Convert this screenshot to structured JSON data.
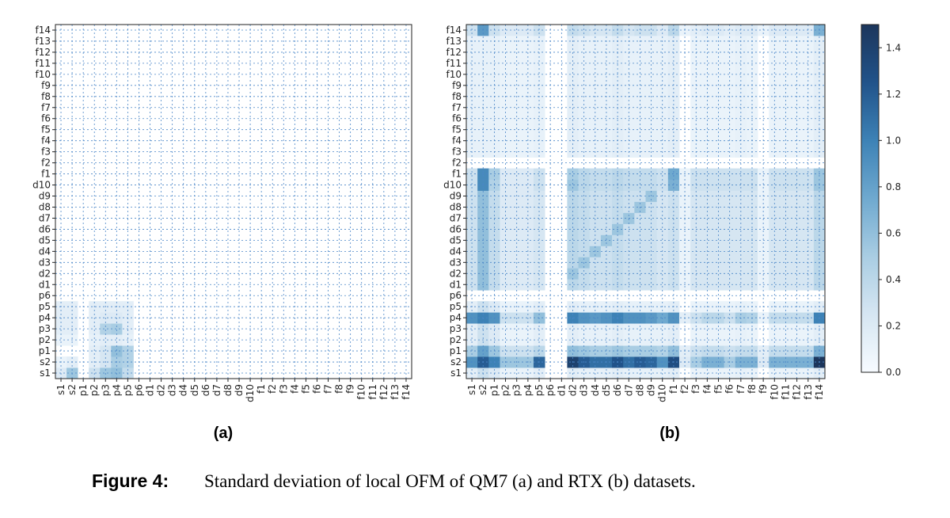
{
  "chart_data": [
    {
      "type": "heatmap",
      "panel_label": "(a)",
      "x_labels": [
        "s1",
        "s2",
        "p1",
        "p2",
        "p3",
        "p4",
        "p5",
        "p6",
        "d1",
        "d2",
        "d3",
        "d4",
        "d5",
        "d6",
        "d7",
        "d8",
        "d9",
        "d10",
        "f1",
        "f2",
        "f3",
        "f4",
        "f5",
        "f6",
        "f7",
        "f8",
        "f9",
        "f10",
        "f11",
        "f12",
        "f13",
        "f14"
      ],
      "y_labels": [
        "s1",
        "s2",
        "p1",
        "p2",
        "p3",
        "p4",
        "p5",
        "p6",
        "d1",
        "d2",
        "d3",
        "d4",
        "d5",
        "d6",
        "d7",
        "d8",
        "d9",
        "d10",
        "f1",
        "f2",
        "f3",
        "f4",
        "f5",
        "f6",
        "f7",
        "f8",
        "f9",
        "f10",
        "f11",
        "f12",
        "f13",
        "f14"
      ],
      "cells": [
        {
          "x": "s1",
          "y": "s1",
          "v": 0.2
        },
        {
          "x": "s2",
          "y": "s1",
          "v": 0.55
        },
        {
          "x": "p2",
          "y": "s1",
          "v": 0.3
        },
        {
          "x": "p3",
          "y": "s1",
          "v": 0.55
        },
        {
          "x": "p4",
          "y": "s1",
          "v": 0.6
        },
        {
          "x": "p5",
          "y": "s1",
          "v": 0.35
        },
        {
          "x": "s1",
          "y": "s2",
          "v": 0.1
        },
        {
          "x": "s2",
          "y": "s2",
          "v": 0.15
        },
        {
          "x": "p2",
          "y": "s2",
          "v": 0.15
        },
        {
          "x": "p3",
          "y": "s2",
          "v": 0.25
        },
        {
          "x": "p4",
          "y": "s2",
          "v": 0.5
        },
        {
          "x": "p5",
          "y": "s2",
          "v": 0.45
        },
        {
          "x": "p2",
          "y": "p1",
          "v": 0.15
        },
        {
          "x": "p3",
          "y": "p1",
          "v": 0.25
        },
        {
          "x": "p4",
          "y": "p1",
          "v": 0.6
        },
        {
          "x": "p5",
          "y": "p1",
          "v": 0.45
        },
        {
          "x": "s1",
          "y": "p2",
          "v": 0.1
        },
        {
          "x": "s2",
          "y": "p2",
          "v": 0.1
        },
        {
          "x": "p2",
          "y": "p2",
          "v": 0.12
        },
        {
          "x": "p3",
          "y": "p2",
          "v": 0.15
        },
        {
          "x": "p4",
          "y": "p2",
          "v": 0.15
        },
        {
          "x": "p5",
          "y": "p2",
          "v": 0.12
        },
        {
          "x": "s1",
          "y": "p3",
          "v": 0.15
        },
        {
          "x": "s2",
          "y": "p3",
          "v": 0.15
        },
        {
          "x": "p2",
          "y": "p3",
          "v": 0.15
        },
        {
          "x": "p3",
          "y": "p3",
          "v": 0.45
        },
        {
          "x": "p4",
          "y": "p3",
          "v": 0.5
        },
        {
          "x": "p5",
          "y": "p3",
          "v": 0.15
        },
        {
          "x": "s1",
          "y": "p4",
          "v": 0.15
        },
        {
          "x": "s2",
          "y": "p4",
          "v": 0.15
        },
        {
          "x": "p2",
          "y": "p4",
          "v": 0.15
        },
        {
          "x": "p3",
          "y": "p4",
          "v": 0.2
        },
        {
          "x": "p4",
          "y": "p4",
          "v": 0.2
        },
        {
          "x": "p5",
          "y": "p4",
          "v": 0.15
        },
        {
          "x": "s1",
          "y": "p5",
          "v": 0.15
        },
        {
          "x": "s2",
          "y": "p5",
          "v": 0.15
        },
        {
          "x": "p2",
          "y": "p5",
          "v": 0.15
        },
        {
          "x": "p3",
          "y": "p5",
          "v": 0.15
        },
        {
          "x": "p4",
          "y": "p5",
          "v": 0.15
        },
        {
          "x": "p5",
          "y": "p5",
          "v": 0.15
        }
      ]
    },
    {
      "type": "heatmap",
      "panel_label": "(b)",
      "x_labels": [
        "s1",
        "s2",
        "p1",
        "p2",
        "p3",
        "p4",
        "p5",
        "p6",
        "d1",
        "d2",
        "d3",
        "d4",
        "d5",
        "d6",
        "d7",
        "d8",
        "d9",
        "d10",
        "f1",
        "f2",
        "f3",
        "f4",
        "f5",
        "f6",
        "f7",
        "f8",
        "f9",
        "f10",
        "f11",
        "f12",
        "f13",
        "f14"
      ],
      "y_labels": [
        "s1",
        "s2",
        "p1",
        "p2",
        "p3",
        "p4",
        "p5",
        "p6",
        "d1",
        "d2",
        "d3",
        "d4",
        "d5",
        "d6",
        "d7",
        "d8",
        "d9",
        "d10",
        "f1",
        "f2",
        "f3",
        "f4",
        "f5",
        "f6",
        "f7",
        "f8",
        "f9",
        "f10",
        "f11",
        "f12",
        "f13",
        "f14"
      ],
      "row_profiles": {
        "s2": [
          0.9,
          1.2,
          1.0,
          0.55,
          0.55,
          0.55,
          1.15,
          0.0,
          0.0,
          1.4,
          1.2,
          1.1,
          1.1,
          1.25,
          1.1,
          1.2,
          1.15,
          0.9,
          1.3,
          0.2,
          0.5,
          0.7,
          0.7,
          0.5,
          0.7,
          0.7,
          0.2,
          0.7,
          0.7,
          0.7,
          0.7,
          1.5
        ],
        "p1": [
          0.5,
          0.8,
          0.55,
          0.3,
          0.3,
          0.3,
          0.4,
          0.0,
          0.0,
          0.6,
          0.55,
          0.5,
          0.5,
          0.55,
          0.5,
          0.5,
          0.5,
          0.45,
          0.6,
          0.15,
          0.3,
          0.35,
          0.35,
          0.3,
          0.35,
          0.35,
          0.15,
          0.35,
          0.35,
          0.35,
          0.35,
          0.7
        ],
        "p4": [
          0.9,
          1.0,
          0.9,
          0.3,
          0.3,
          0.3,
          0.6,
          0.0,
          0.0,
          1.0,
          0.9,
          0.85,
          0.9,
          1.0,
          0.9,
          0.9,
          0.85,
          0.75,
          0.9,
          0.15,
          0.3,
          0.4,
          0.4,
          0.3,
          0.5,
          0.45,
          0.1,
          0.35,
          0.35,
          0.35,
          0.35,
          1.0
        ],
        "d10": [
          0.3,
          0.95,
          0.45,
          0.2,
          0.2,
          0.2,
          0.3,
          0.0,
          0.0,
          0.55,
          0.4,
          0.35,
          0.35,
          0.4,
          0.35,
          0.35,
          0.35,
          0.3,
          0.7,
          0.1,
          0.3,
          0.3,
          0.3,
          0.3,
          0.3,
          0.3,
          0.1,
          0.3,
          0.3,
          0.3,
          0.3,
          0.55
        ],
        "d_block": [
          0.3,
          0.6,
          0.35,
          0.2,
          0.2,
          0.2,
          0.25,
          0.0,
          0.0,
          0.4,
          0.35,
          0.3,
          0.3,
          0.35,
          0.3,
          0.3,
          0.3,
          0.25,
          0.3,
          0.1,
          0.25,
          0.25,
          0.25,
          0.25,
          0.25,
          0.25,
          0.1,
          0.25,
          0.25,
          0.25,
          0.25,
          0.4
        ],
        "f1": [
          0.3,
          0.95,
          0.5,
          0.2,
          0.2,
          0.2,
          0.3,
          0.0,
          0.0,
          0.5,
          0.4,
          0.35,
          0.35,
          0.4,
          0.35,
          0.35,
          0.35,
          0.3,
          0.75,
          0.1,
          0.3,
          0.3,
          0.3,
          0.3,
          0.3,
          0.3,
          0.1,
          0.3,
          0.3,
          0.3,
          0.3,
          0.55
        ],
        "f14": [
          0.3,
          0.85,
          0.3,
          0.2,
          0.2,
          0.2,
          0.3,
          0.0,
          0.0,
          0.35,
          0.3,
          0.25,
          0.25,
          0.35,
          0.25,
          0.3,
          0.3,
          0.2,
          0.4,
          0.1,
          0.15,
          0.2,
          0.2,
          0.15,
          0.2,
          0.2,
          0.1,
          0.2,
          0.2,
          0.2,
          0.2,
          0.7
        ],
        "f_block": [
          0.12,
          0.12,
          0.12,
          0.1,
          0.1,
          0.1,
          0.12,
          0.0,
          0.0,
          0.15,
          0.12,
          0.12,
          0.12,
          0.15,
          0.12,
          0.12,
          0.12,
          0.12,
          0.15,
          0.0,
          0.1,
          0.1,
          0.1,
          0.1,
          0.12,
          0.1,
          0.0,
          0.1,
          0.1,
          0.1,
          0.1,
          0.15
        ],
        "p3": [
          0.15,
          0.3,
          0.2,
          0.1,
          0.1,
          0.1,
          0.15,
          0.0,
          0.0,
          0.15,
          0.12,
          0.12,
          0.12,
          0.15,
          0.12,
          0.12,
          0.12,
          0.12,
          0.15,
          0.0,
          0.1,
          0.1,
          0.1,
          0.1,
          0.12,
          0.1,
          0.0,
          0.1,
          0.1,
          0.1,
          0.1,
          0.15
        ]
      },
      "row_map": {
        "s1": "p3",
        "s2": "s2",
        "p1": "p1",
        "p2": "p3",
        "p3": "p3",
        "p4": "p4",
        "p5": "p3",
        "p6": "zero",
        "d1": "d_block",
        "d2": "d_block",
        "d3": "d_block",
        "d4": "d_block",
        "d5": "d_block",
        "d6": "d_block",
        "d7": "d_block",
        "d8": "d_block",
        "d9": "d_block",
        "d10": "d10",
        "f1": "f1",
        "f2": "zero",
        "f3": "f_block",
        "f4": "f_block",
        "f5": "f_block",
        "f6": "f_block",
        "f7": "f_block",
        "f8": "f_block",
        "f9": "f_block",
        "f10": "f_block",
        "f11": "f_block",
        "f12": "f_block",
        "f13": "f_block",
        "f14": "f14"
      },
      "diagonal_highlight": {
        "columns": [
          "d2",
          "d3",
          "d4",
          "d5",
          "d6",
          "d7",
          "d8",
          "d9"
        ],
        "v": 0.55
      }
    }
  ],
  "colorbar": {
    "min": 0.0,
    "max": 1.5,
    "ticks": [
      "0.0",
      "0.2",
      "0.4",
      "0.6",
      "0.8",
      "1.0",
      "1.2",
      "1.4"
    ],
    "tick_values": [
      0.0,
      0.2,
      0.4,
      0.6,
      0.8,
      1.0,
      1.2,
      1.4
    ],
    "colors": [
      "#f7fbff",
      "#d6e6f2",
      "#a9cde3",
      "#6fa9cf",
      "#3d82b6",
      "#21538a",
      "#1c365c"
    ]
  },
  "caption": {
    "label": "Figure 4:",
    "text": "Standard deviation of local OFM of QM7 (a) and RTX (b) datasets."
  }
}
